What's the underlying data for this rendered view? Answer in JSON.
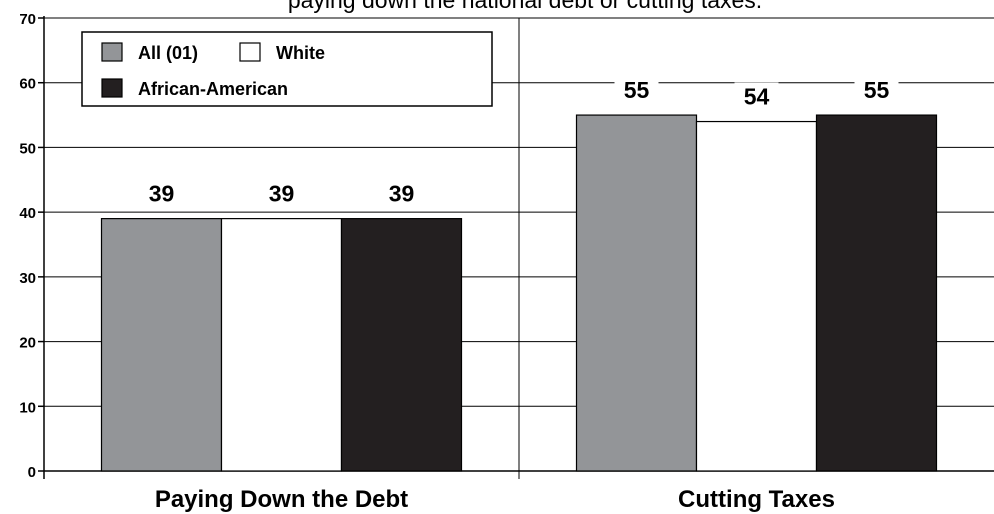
{
  "chart_data": {
    "type": "bar",
    "title": "paying down the national debt or cutting taxes.",
    "categories": [
      "Paying Down the Debt",
      "Cutting Taxes"
    ],
    "series": [
      {
        "name": "All (01)",
        "values": [
          39,
          55
        ],
        "color": "#939598"
      },
      {
        "name": "White",
        "values": [
          39,
          54
        ],
        "color": "#ffffff"
      },
      {
        "name": "African-American",
        "values": [
          39,
          55
        ],
        "color": "#231f20"
      }
    ],
    "ylim": [
      0,
      70
    ],
    "yticks": [
      0,
      10,
      20,
      30,
      40,
      50,
      60,
      70
    ],
    "xlabel": "",
    "ylabel": "",
    "grid": true,
    "legend_position": "top-left"
  }
}
